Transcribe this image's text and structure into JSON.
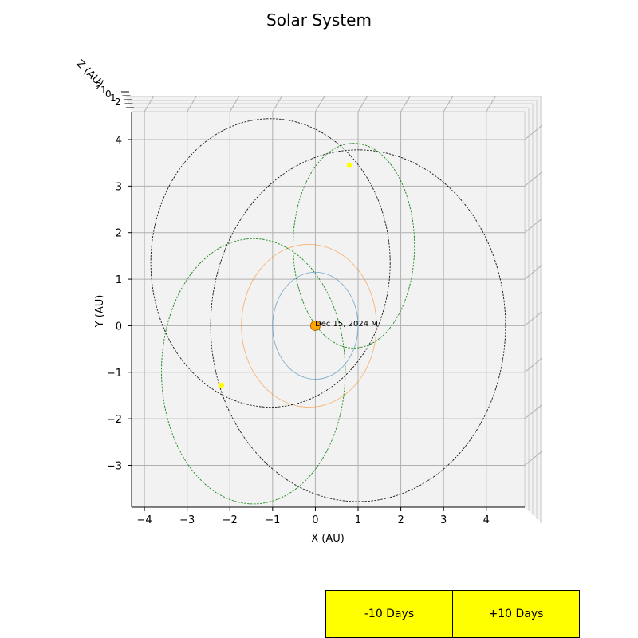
{
  "chart_data": {
    "type": "scatter",
    "title": "Solar System",
    "xlabel": "X (AU)",
    "ylabel": "Y (AU)",
    "zlabel": "Z (AU)",
    "xlim": [
      -4.3,
      4.9
    ],
    "ylim": [
      -3.9,
      4.6
    ],
    "x_ticks": [
      -4,
      -3,
      -2,
      -1,
      0,
      1,
      2,
      3,
      4
    ],
    "y_ticks": [
      -3,
      -2,
      -1,
      0,
      1,
      2,
      3,
      4
    ],
    "z_tick_labels": [
      "2",
      "1",
      "0",
      "1",
      "2"
    ],
    "grid": true,
    "date_label": "Dec 15, 2024 M",
    "sun": {
      "x": 0,
      "y": 0,
      "color": "#ffa500"
    },
    "orbits": [
      {
        "cx": 0,
        "cy": 0,
        "a": 1.0,
        "b": 1.15,
        "color": "#1f77b4",
        "style": "solid"
      },
      {
        "cx": -0.15,
        "cy": 0,
        "a": 1.58,
        "b": 1.75,
        "color": "#ff7f0e",
        "style": "solid"
      },
      {
        "cx": -1.05,
        "cy": 1.35,
        "a": 2.8,
        "b": 3.1,
        "color": "#000000",
        "style": "dashed"
      },
      {
        "cx": 1.0,
        "cy": 0,
        "a": 3.45,
        "b": 3.78,
        "color": "#000000",
        "style": "dashed"
      },
      {
        "cx": 0.9,
        "cy": 1.72,
        "a": 1.42,
        "b": 2.2,
        "color": "#008000",
        "style": "dashed"
      },
      {
        "cx": -1.45,
        "cy": -0.98,
        "a": 2.15,
        "b": 2.85,
        "color": "#008000",
        "style": "dashed"
      }
    ],
    "bodies": [
      {
        "x": 0.8,
        "y": 3.45,
        "color": "#ffff00"
      },
      {
        "x": -2.2,
        "y": -1.28,
        "color": "#ffff00"
      }
    ]
  },
  "controls": {
    "minus_label": "-10 Days",
    "plus_label": "+10 Days",
    "button_color": "#ffff00"
  }
}
